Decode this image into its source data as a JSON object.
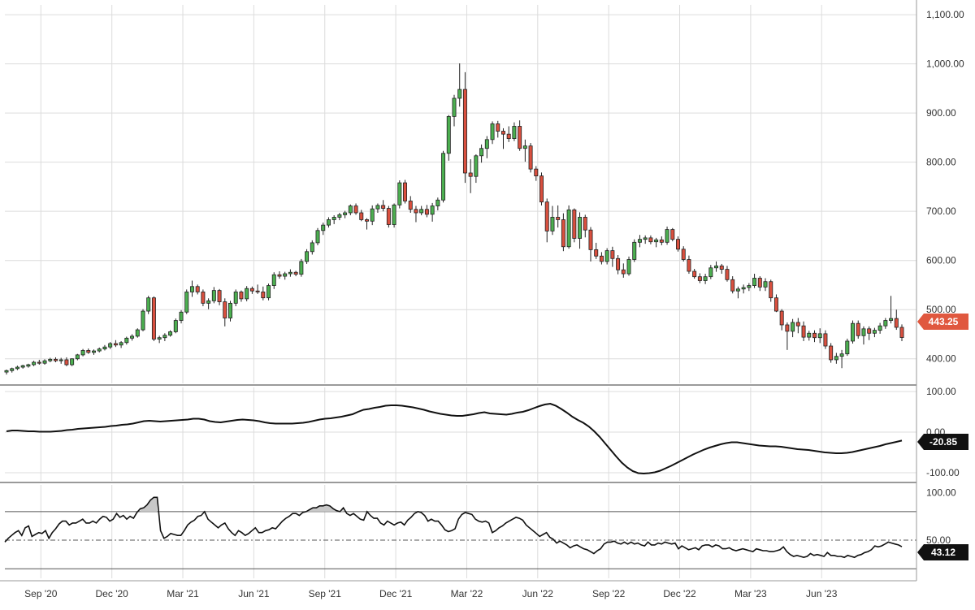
{
  "colors": {
    "up": "#4caf50",
    "down": "#d9503f",
    "grid": "#dcdcdc",
    "line": "#111111",
    "price_badge": "#e0583f",
    "indicator_badge": "#111111",
    "overbought_fill": "#c8c8c8"
  },
  "chart_data": [
    {
      "type": "candlestick",
      "interval": "weekly",
      "x_ticks": [
        "Sep '20",
        "Dec '20",
        "Mar '21",
        "Jun '21",
        "Sep '21",
        "Dec '21",
        "Mar '22",
        "Jun '22",
        "Sep '22",
        "Dec '22",
        "Mar '23",
        "Jun '23"
      ],
      "y_ticks": [
        "1,100.00",
        "1,000.00",
        "900.00",
        "800.00",
        "700.00",
        "600.00",
        "500.00",
        "400.00"
      ],
      "ylim": [
        350,
        1120
      ],
      "last_price": "443.25",
      "candles": [
        [
          373,
          378,
          368,
          376
        ],
        [
          376,
          382,
          372,
          380
        ],
        [
          380,
          386,
          377,
          383
        ],
        [
          383,
          388,
          380,
          386
        ],
        [
          385,
          390,
          382,
          388
        ],
        [
          388,
          396,
          385,
          393
        ],
        [
          393,
          398,
          388,
          391
        ],
        [
          391,
          399,
          388,
          396
        ],
        [
          396,
          402,
          393,
          399
        ],
        [
          399,
          403,
          393,
          396
        ],
        [
          396,
          402,
          390,
          398
        ],
        [
          398,
          403,
          385,
          388
        ],
        [
          388,
          401,
          385,
          400
        ],
        [
          400,
          410,
          397,
          408
        ],
        [
          408,
          420,
          405,
          417
        ],
        [
          417,
          421,
          410,
          413
        ],
        [
          413,
          419,
          408,
          416
        ],
        [
          416,
          423,
          413,
          420
        ],
        [
          420,
          428,
          417,
          424
        ],
        [
          424,
          434,
          420,
          431
        ],
        [
          431,
          438,
          424,
          428
        ],
        [
          428,
          436,
          422,
          433
        ],
        [
          433,
          445,
          429,
          442
        ],
        [
          442,
          450,
          437,
          446
        ],
        [
          446,
          462,
          443,
          459
        ],
        [
          459,
          501,
          456,
          497
        ],
        [
          497,
          528,
          491,
          524
        ],
        [
          524,
          527,
          436,
          440
        ],
        [
          440,
          447,
          432,
          443
        ],
        [
          443,
          452,
          436,
          448
        ],
        [
          448,
          458,
          445,
          455
        ],
        [
          455,
          482,
          452,
          478
        ],
        [
          478,
          499,
          472,
          495
        ],
        [
          495,
          541,
          491,
          536
        ],
        [
          536,
          559,
          526,
          547
        ],
        [
          547,
          551,
          531,
          536
        ],
        [
          536,
          541,
          507,
          513
        ],
        [
          513,
          523,
          501,
          518
        ],
        [
          518,
          546,
          513,
          539
        ],
        [
          539,
          542,
          509,
          516
        ],
        [
          516,
          523,
          466,
          483
        ],
        [
          483,
          518,
          476,
          513
        ],
        [
          513,
          541,
          507,
          536
        ],
        [
          536,
          539,
          516,
          522
        ],
        [
          522,
          548,
          517,
          543
        ],
        [
          543,
          547,
          532,
          538
        ],
        [
          538,
          551,
          532,
          536
        ],
        [
          536,
          547,
          519,
          524
        ],
        [
          524,
          553,
          519,
          549
        ],
        [
          549,
          576,
          542,
          571
        ],
        [
          571,
          578,
          563,
          568
        ],
        [
          568,
          577,
          561,
          573
        ],
        [
          573,
          582,
          567,
          576
        ],
        [
          576,
          579,
          568,
          572
        ],
        [
          572,
          603,
          567,
          598
        ],
        [
          598,
          623,
          593,
          618
        ],
        [
          618,
          641,
          612,
          636
        ],
        [
          636,
          666,
          631,
          661
        ],
        [
          661,
          677,
          652,
          672
        ],
        [
          672,
          688,
          667,
          683
        ],
        [
          683,
          692,
          674,
          688
        ],
        [
          688,
          697,
          682,
          693
        ],
        [
          693,
          701,
          686,
          697
        ],
        [
          697,
          714,
          692,
          711
        ],
        [
          711,
          716,
          693,
          697
        ],
        [
          697,
          703,
          680,
          683
        ],
        [
          683,
          686,
          663,
          680
        ],
        [
          680,
          712,
          672,
          705
        ],
        [
          705,
          716,
          697,
          712
        ],
        [
          712,
          723,
          700,
          706
        ],
        [
          706,
          711,
          667,
          673
        ],
        [
          673,
          716,
          667,
          713
        ],
        [
          713,
          763,
          706,
          758
        ],
        [
          758,
          764,
          716,
          721
        ],
        [
          721,
          731,
          697,
          704
        ],
        [
          704,
          711,
          678,
          697
        ],
        [
          697,
          711,
          692,
          704
        ],
        [
          704,
          713,
          688,
          694
        ],
        [
          694,
          717,
          679,
          711
        ],
        [
          711,
          728,
          702,
          723
        ],
        [
          723,
          823,
          718,
          818
        ],
        [
          818,
          896,
          803,
          893
        ],
        [
          893,
          937,
          873,
          930
        ],
        [
          930,
          1001,
          913,
          948
        ],
        [
          948,
          983,
          758,
          778
        ],
        [
          778,
          806,
          737,
          771
        ],
        [
          771,
          816,
          758,
          813
        ],
        [
          813,
          836,
          799,
          828
        ],
        [
          828,
          853,
          808,
          846
        ],
        [
          846,
          883,
          837,
          878
        ],
        [
          878,
          884,
          850,
          863
        ],
        [
          863,
          869,
          827,
          857
        ],
        [
          857,
          873,
          841,
          848
        ],
        [
          848,
          881,
          843,
          873
        ],
        [
          873,
          885,
          823,
          828
        ],
        [
          828,
          846,
          801,
          833
        ],
        [
          833,
          839,
          779,
          786
        ],
        [
          786,
          792,
          762,
          772
        ],
        [
          772,
          779,
          712,
          719
        ],
        [
          719,
          726,
          637,
          660
        ],
        [
          660,
          711,
          652,
          688
        ],
        [
          688,
          712,
          667,
          683
        ],
        [
          683,
          696,
          619,
          628
        ],
        [
          628,
          712,
          624,
          703
        ],
        [
          703,
          706,
          637,
          645
        ],
        [
          645,
          698,
          624,
          688
        ],
        [
          688,
          693,
          647,
          662
        ],
        [
          662,
          668,
          598,
          622
        ],
        [
          622,
          636,
          603,
          609
        ],
        [
          609,
          617,
          592,
          598
        ],
        [
          598,
          625,
          592,
          620
        ],
        [
          620,
          628,
          587,
          604
        ],
        [
          604,
          611,
          572,
          581
        ],
        [
          581,
          594,
          565,
          573
        ],
        [
          573,
          608,
          569,
          602
        ],
        [
          602,
          643,
          597,
          637
        ],
        [
          637,
          652,
          627,
          643
        ],
        [
          643,
          651,
          634,
          646
        ],
        [
          646,
          651,
          633,
          638
        ],
        [
          638,
          646,
          627,
          642
        ],
        [
          642,
          649,
          631,
          637
        ],
        [
          637,
          669,
          632,
          663
        ],
        [
          663,
          666,
          639,
          643
        ],
        [
          643,
          649,
          618,
          623
        ],
        [
          623,
          629,
          598,
          602
        ],
        [
          602,
          610,
          573,
          578
        ],
        [
          578,
          583,
          563,
          567
        ],
        [
          567,
          574,
          554,
          559
        ],
        [
          559,
          573,
          552,
          567
        ],
        [
          567,
          591,
          562,
          585
        ],
        [
          585,
          598,
          577,
          589
        ],
        [
          589,
          593,
          573,
          582
        ],
        [
          582,
          589,
          557,
          561
        ],
        [
          561,
          568,
          533,
          538
        ],
        [
          538,
          547,
          523,
          542
        ],
        [
          542,
          551,
          533,
          545
        ],
        [
          545,
          554,
          538,
          549
        ],
        [
          549,
          573,
          544,
          564
        ],
        [
          564,
          568,
          538,
          546
        ],
        [
          546,
          564,
          538,
          557
        ],
        [
          557,
          561,
          516,
          524
        ],
        [
          524,
          531,
          495,
          497
        ],
        [
          497,
          501,
          458,
          469
        ],
        [
          469,
          474,
          418,
          456
        ],
        [
          456,
          481,
          444,
          474
        ],
        [
          474,
          483,
          452,
          467
        ],
        [
          467,
          476,
          436,
          444
        ],
        [
          444,
          457,
          437,
          452
        ],
        [
          452,
          458,
          434,
          443
        ],
        [
          443,
          462,
          432,
          451
        ],
        [
          451,
          458,
          420,
          426
        ],
        [
          426,
          432,
          392,
          398
        ],
        [
          398,
          412,
          390,
          405
        ],
        [
          405,
          418,
          381,
          410
        ],
        [
          410,
          441,
          406,
          436
        ],
        [
          436,
          478,
          431,
          472
        ],
        [
          472,
          478,
          441,
          447
        ],
        [
          447,
          466,
          429,
          461
        ],
        [
          461,
          466,
          438,
          452
        ],
        [
          452,
          463,
          444,
          458
        ],
        [
          458,
          473,
          451,
          467
        ],
        [
          467,
          483,
          461,
          478
        ],
        [
          478,
          528,
          472,
          482
        ],
        [
          482,
          500,
          459,
          464
        ],
        [
          464,
          470,
          436,
          443.25
        ]
      ]
    },
    {
      "type": "line",
      "name": "",
      "y_ticks": [
        "100.00",
        "0.00",
        "-100.00"
      ],
      "ylim": [
        -120,
        110
      ],
      "last_value": "-20.85",
      "values": [
        2,
        4,
        4,
        3,
        2,
        2,
        1,
        1,
        1,
        2,
        3,
        5,
        6,
        8,
        9,
        10,
        11,
        12,
        13,
        15,
        16,
        18,
        19,
        21,
        24,
        27,
        28,
        27,
        26,
        27,
        28,
        29,
        30,
        31,
        33,
        33,
        31,
        27,
        25,
        24,
        26,
        28,
        30,
        31,
        30,
        29,
        27,
        24,
        22,
        21,
        21,
        21,
        21,
        22,
        23,
        25,
        28,
        31,
        33,
        34,
        36,
        38,
        41,
        44,
        50,
        55,
        57,
        60,
        62,
        65,
        66,
        66,
        65,
        63,
        61,
        58,
        55,
        51,
        48,
        45,
        43,
        41,
        40,
        40,
        42,
        44,
        47,
        49,
        46,
        45,
        44,
        43,
        45,
        48,
        50,
        54,
        59,
        64,
        68,
        70,
        65,
        57,
        48,
        38,
        30,
        23,
        14,
        2,
        -12,
        -28,
        -44,
        -60,
        -75,
        -87,
        -96,
        -101,
        -102,
        -101,
        -99,
        -95,
        -89,
        -83,
        -76,
        -69,
        -62,
        -55,
        -49,
        -43,
        -38,
        -34,
        -30,
        -27,
        -25,
        -25,
        -27,
        -29,
        -31,
        -33,
        -34,
        -35,
        -35,
        -36,
        -38,
        -40,
        -42,
        -43,
        -44,
        -46,
        -48,
        -50,
        -51,
        -52,
        -52,
        -51,
        -49,
        -46,
        -43,
        -40,
        -37,
        -34,
        -30,
        -27,
        -24,
        -20.85
      ]
    },
    {
      "type": "line",
      "name": "",
      "y_ticks": [
        "100.00",
        "50.00"
      ],
      "ylim": [
        10,
        108
      ],
      "levels": [
        80,
        50,
        20
      ],
      "last_value": "43.12",
      "values": [
        48,
        52,
        55,
        58,
        60,
        55,
        63,
        65,
        54,
        56,
        58,
        57,
        60,
        52,
        58,
        62,
        67,
        70,
        70,
        66,
        68,
        68,
        70,
        72,
        68,
        68,
        70,
        68,
        72,
        75,
        74,
        70,
        72,
        78,
        74,
        76,
        72,
        75,
        73,
        79,
        83,
        84,
        87,
        92,
        95,
        95,
        60,
        52,
        54,
        57,
        56,
        55,
        55,
        60,
        66,
        69,
        71,
        75,
        76,
        80,
        72,
        69,
        66,
        63,
        66,
        68,
        62,
        58,
        55,
        60,
        58,
        55,
        57,
        60,
        63,
        58,
        58,
        60,
        61,
        63,
        62,
        66,
        70,
        73,
        75,
        78,
        78,
        76,
        79,
        80,
        82,
        84,
        84,
        86,
        86,
        87,
        86,
        83,
        81,
        80,
        84,
        78,
        76,
        78,
        75,
        72,
        71,
        80,
        76,
        73,
        73,
        68,
        66,
        70,
        68,
        66,
        68,
        69,
        66,
        71,
        74,
        78,
        80,
        79,
        76,
        70,
        72,
        70,
        70,
        66,
        61,
        59,
        60,
        62,
        72,
        77,
        79,
        78,
        77,
        72,
        70,
        69,
        70,
        68,
        58,
        60,
        63,
        65,
        68,
        70,
        72,
        74,
        73,
        71,
        66,
        63,
        60,
        57,
        54,
        56,
        58,
        53,
        51,
        47,
        49,
        47,
        45,
        42,
        44,
        45,
        43,
        41,
        40,
        38,
        36,
        39,
        41,
        46,
        48,
        48,
        49,
        47,
        46,
        48,
        46,
        48,
        46,
        47,
        45,
        44,
        48,
        45,
        45,
        47,
        46,
        48,
        47,
        46,
        47,
        41,
        44,
        42,
        40,
        41,
        42,
        40,
        44,
        45,
        45,
        43,
        45,
        44,
        41,
        41,
        42,
        40,
        39,
        40,
        41,
        40,
        39,
        38,
        41,
        40,
        39,
        39,
        38,
        38,
        39,
        40,
        43,
        38,
        35,
        33,
        34,
        33,
        32,
        33,
        36,
        34,
        35,
        34,
        33,
        37,
        34,
        34,
        33,
        33,
        32,
        34,
        33,
        32,
        34,
        35,
        37,
        38,
        40,
        44,
        43,
        44,
        46,
        48,
        47,
        46,
        45,
        43.12
      ]
    }
  ]
}
